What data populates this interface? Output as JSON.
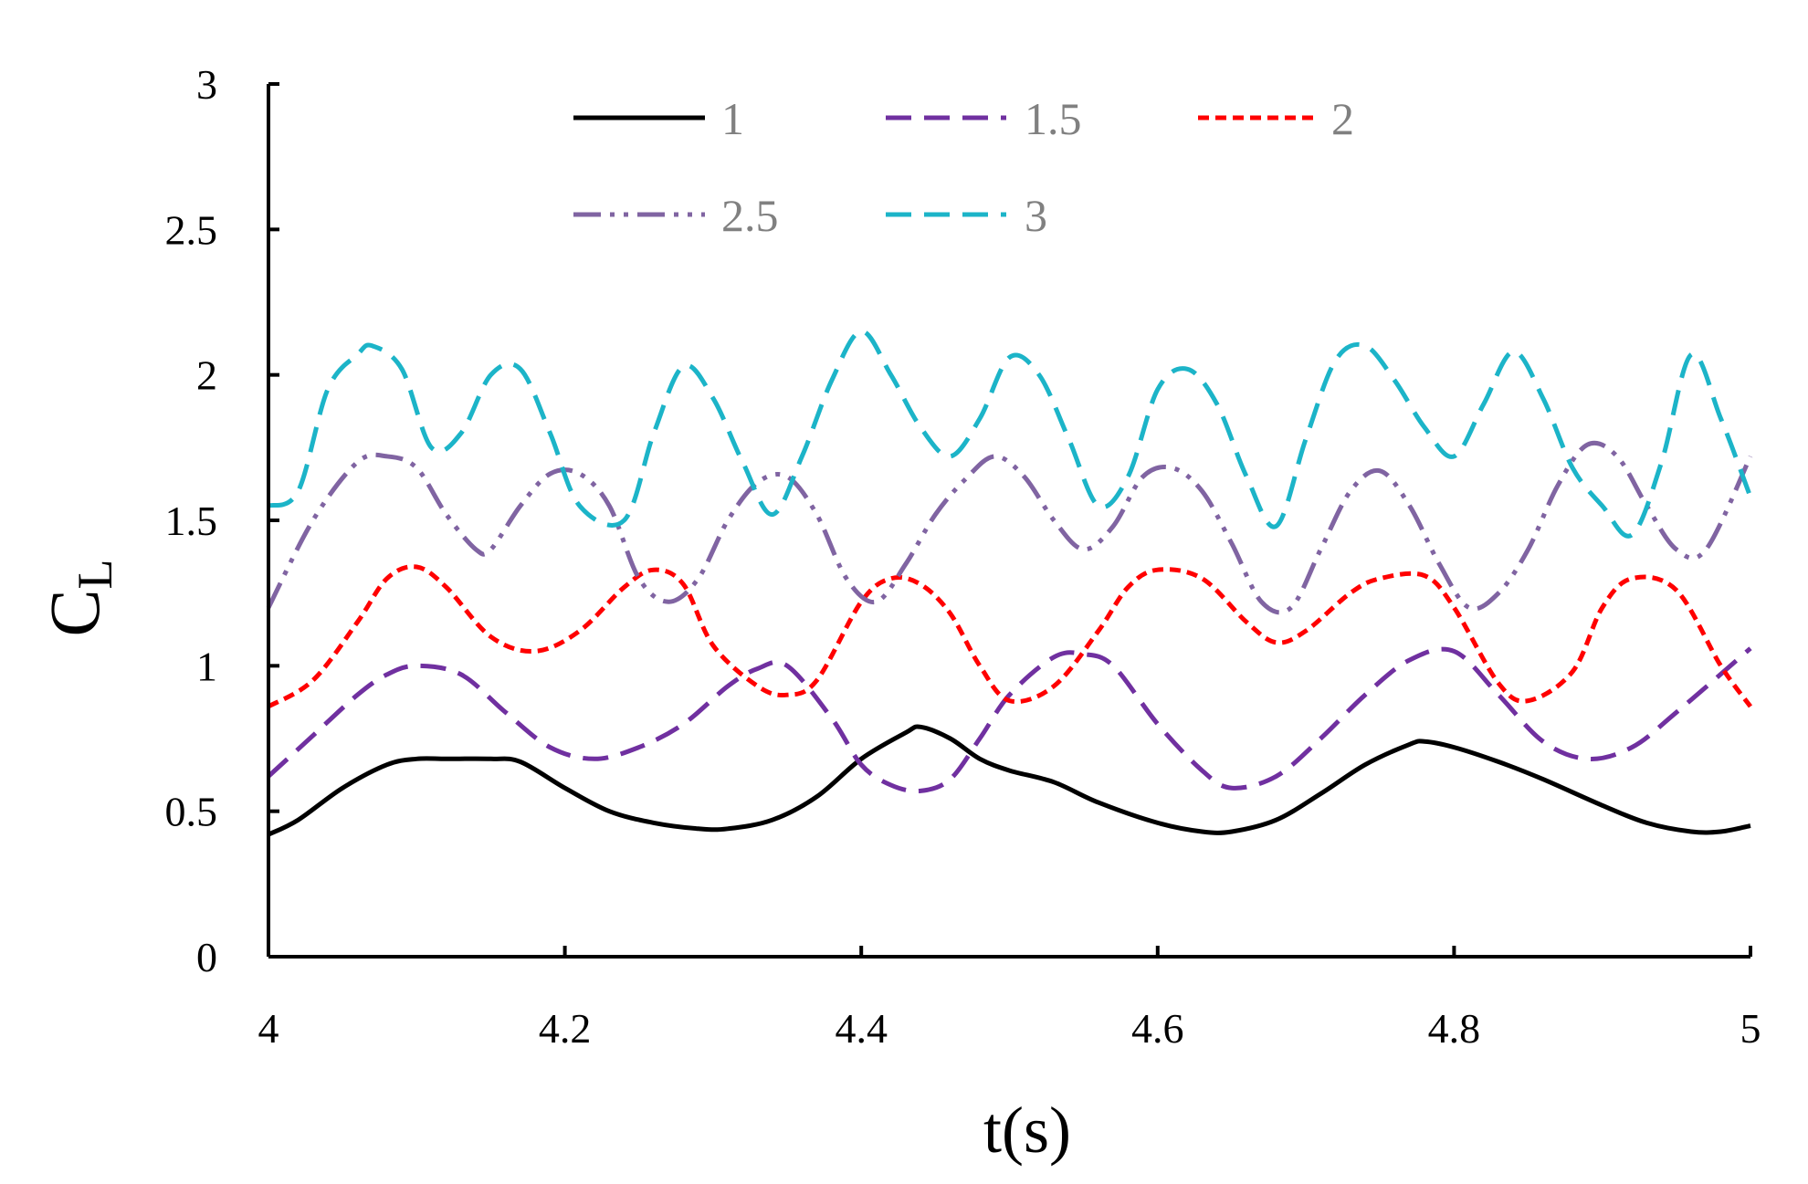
{
  "chart_data": {
    "type": "line",
    "title": "",
    "xlabel": "t(s)",
    "ylabel_main": "C",
    "ylabel_sub": "L",
    "xlim": [
      4,
      5
    ],
    "ylim": [
      0,
      3
    ],
    "x_ticks": [
      "4",
      "4.2",
      "4.4",
      "4.6",
      "4.8",
      "5"
    ],
    "y_ticks": [
      "0",
      "0.5",
      "1",
      "1.5",
      "2",
      "2.5",
      "3"
    ],
    "legend_position": "top-center",
    "series": [
      {
        "name": "1",
        "color": "#000000",
        "style": "solid",
        "x": [
          4.0,
          4.02,
          4.05,
          4.08,
          4.1,
          4.12,
          4.15,
          4.17,
          4.2,
          4.23,
          4.26,
          4.29,
          4.31,
          4.34,
          4.37,
          4.4,
          4.43,
          4.44,
          4.46,
          4.48,
          4.5,
          4.53,
          4.56,
          4.6,
          4.63,
          4.65,
          4.68,
          4.71,
          4.74,
          4.77,
          4.78,
          4.8,
          4.83,
          4.86,
          4.9,
          4.93,
          4.96,
          4.98,
          5.0
        ],
        "values": [
          0.42,
          0.47,
          0.58,
          0.66,
          0.68,
          0.68,
          0.68,
          0.67,
          0.58,
          0.5,
          0.46,
          0.44,
          0.44,
          0.47,
          0.55,
          0.68,
          0.77,
          0.79,
          0.75,
          0.68,
          0.64,
          0.6,
          0.53,
          0.46,
          0.43,
          0.43,
          0.47,
          0.56,
          0.66,
          0.73,
          0.74,
          0.72,
          0.67,
          0.61,
          0.52,
          0.46,
          0.43,
          0.43,
          0.45
        ]
      },
      {
        "name": "1.5",
        "color": "#7030A0",
        "style": "dash",
        "x": [
          4.0,
          4.03,
          4.06,
          4.08,
          4.1,
          4.13,
          4.16,
          4.19,
          4.22,
          4.25,
          4.28,
          4.31,
          4.33,
          4.35,
          4.38,
          4.4,
          4.42,
          4.44,
          4.46,
          4.48,
          4.5,
          4.53,
          4.55,
          4.57,
          4.6,
          4.63,
          4.65,
          4.68,
          4.71,
          4.74,
          4.77,
          4.8,
          4.83,
          4.86,
          4.89,
          4.92,
          4.95,
          5.0
        ],
        "values": [
          0.62,
          0.76,
          0.9,
          0.97,
          1.0,
          0.97,
          0.84,
          0.72,
          0.68,
          0.72,
          0.8,
          0.93,
          0.99,
          1.0,
          0.82,
          0.66,
          0.59,
          0.57,
          0.61,
          0.75,
          0.9,
          1.03,
          1.04,
          1.0,
          0.8,
          0.64,
          0.58,
          0.62,
          0.75,
          0.9,
          1.02,
          1.05,
          0.9,
          0.74,
          0.68,
          0.72,
          0.84,
          1.06
        ]
      },
      {
        "name": "2",
        "color": "#FF0000",
        "style": "short-dash",
        "x": [
          4.0,
          4.03,
          4.06,
          4.08,
          4.1,
          4.12,
          4.15,
          4.18,
          4.21,
          4.24,
          4.26,
          4.28,
          4.3,
          4.33,
          4.35,
          4.37,
          4.4,
          4.42,
          4.44,
          4.46,
          4.48,
          4.5,
          4.53,
          4.56,
          4.58,
          4.6,
          4.63,
          4.66,
          4.68,
          4.7,
          4.73,
          4.75,
          4.78,
          4.8,
          4.83,
          4.85,
          4.88,
          4.9,
          4.92,
          4.95,
          4.98,
          5.0
        ],
        "values": [
          0.86,
          0.95,
          1.15,
          1.3,
          1.34,
          1.27,
          1.1,
          1.05,
          1.12,
          1.27,
          1.33,
          1.28,
          1.07,
          0.93,
          0.9,
          0.95,
          1.22,
          1.3,
          1.28,
          1.18,
          1.0,
          0.88,
          0.93,
          1.12,
          1.27,
          1.33,
          1.3,
          1.15,
          1.08,
          1.12,
          1.25,
          1.3,
          1.31,
          1.2,
          0.94,
          0.88,
          0.98,
          1.2,
          1.3,
          1.26,
          1.0,
          0.86
        ]
      },
      {
        "name": "2.5",
        "color": "#8064A2",
        "style": "dash-dot-dot",
        "x": [
          4.0,
          4.03,
          4.06,
          4.08,
          4.1,
          4.12,
          4.14,
          4.15,
          4.17,
          4.19,
          4.21,
          4.23,
          4.25,
          4.27,
          4.29,
          4.31,
          4.33,
          4.35,
          4.37,
          4.39,
          4.41,
          4.43,
          4.45,
          4.47,
          4.49,
          4.51,
          4.53,
          4.55,
          4.57,
          4.59,
          4.61,
          4.63,
          4.65,
          4.67,
          4.69,
          4.71,
          4.73,
          4.75,
          4.77,
          4.79,
          4.81,
          4.83,
          4.85,
          4.87,
          4.89,
          4.91,
          4.93,
          4.95,
          4.97,
          5.0
        ],
        "values": [
          1.2,
          1.5,
          1.7,
          1.72,
          1.68,
          1.52,
          1.4,
          1.4,
          1.55,
          1.66,
          1.66,
          1.55,
          1.3,
          1.22,
          1.3,
          1.5,
          1.63,
          1.65,
          1.52,
          1.3,
          1.22,
          1.35,
          1.52,
          1.64,
          1.72,
          1.65,
          1.5,
          1.4,
          1.48,
          1.65,
          1.68,
          1.6,
          1.42,
          1.22,
          1.2,
          1.4,
          1.6,
          1.67,
          1.55,
          1.35,
          1.2,
          1.25,
          1.4,
          1.62,
          1.76,
          1.72,
          1.55,
          1.4,
          1.4,
          1.72
        ]
      },
      {
        "name": "3",
        "color": "#1CB4C8",
        "style": "dash",
        "x": [
          4.0,
          4.02,
          4.04,
          4.06,
          4.07,
          4.09,
          4.11,
          4.13,
          4.15,
          4.17,
          4.19,
          4.21,
          4.24,
          4.26,
          4.28,
          4.3,
          4.32,
          4.34,
          4.36,
          4.38,
          4.4,
          4.42,
          4.44,
          4.46,
          4.48,
          4.5,
          4.52,
          4.54,
          4.56,
          4.58,
          4.6,
          4.62,
          4.64,
          4.66,
          4.68,
          4.7,
          4.72,
          4.74,
          4.76,
          4.78,
          4.8,
          4.82,
          4.84,
          4.86,
          4.88,
          4.9,
          4.92,
          4.94,
          4.96,
          4.98,
          5.0
        ],
        "values": [
          1.55,
          1.6,
          1.95,
          2.07,
          2.1,
          2.02,
          1.75,
          1.8,
          2.0,
          2.02,
          1.8,
          1.55,
          1.5,
          1.8,
          2.03,
          1.92,
          1.7,
          1.52,
          1.72,
          1.98,
          2.15,
          2.0,
          1.82,
          1.72,
          1.85,
          2.06,
          2.0,
          1.78,
          1.55,
          1.65,
          1.95,
          2.02,
          1.9,
          1.65,
          1.48,
          1.78,
          2.05,
          2.1,
          1.98,
          1.82,
          1.72,
          1.9,
          2.08,
          1.92,
          1.68,
          1.55,
          1.45,
          1.7,
          2.07,
          1.85,
          1.58
        ]
      }
    ]
  }
}
